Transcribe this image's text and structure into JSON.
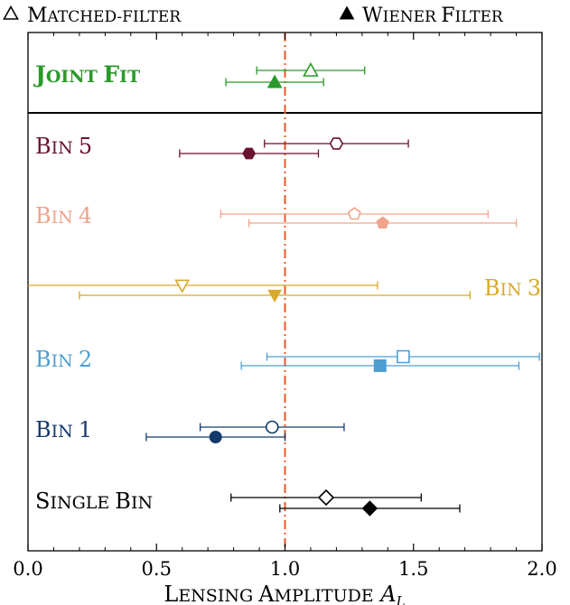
{
  "chart_data": {
    "type": "scatter",
    "xlabel": "Lensing amplitude",
    "xlabel_symbol": "A",
    "xlabel_subscript": "L",
    "xlim": [
      0.0,
      2.0
    ],
    "x_ticks": [
      "0.0",
      "0.5",
      "1.0",
      "1.5",
      "2.0"
    ],
    "reference_line": 1.0,
    "reference_color": "#e8592a",
    "grid": false,
    "legend_position": "top",
    "legend": [
      {
        "label": "Matched-filter",
        "marker": "open-triangle"
      },
      {
        "label": "Wiener filter",
        "marker": "filled-triangle"
      }
    ],
    "rows": [
      {
        "label": "Joint fit",
        "bold": true,
        "color": "#2a9a2a",
        "open": {
          "value": 1.1,
          "err_low": 0.89,
          "err_high": 1.31,
          "marker": "triangle-up"
        },
        "filled": {
          "value": 0.96,
          "err_low": 0.77,
          "err_high": 1.15,
          "marker": "triangle-up"
        }
      },
      {
        "label": "Bin 5",
        "bold": false,
        "color": "#6b1230",
        "open": {
          "value": 1.2,
          "err_low": 0.92,
          "err_high": 1.48,
          "marker": "hexagon"
        },
        "filled": {
          "value": 0.86,
          "err_low": 0.59,
          "err_high": 1.13,
          "marker": "hexagon"
        }
      },
      {
        "label": "Bin 4",
        "bold": false,
        "color": "#f0a38c",
        "open": {
          "value": 1.27,
          "err_low": 0.75,
          "err_high": 1.79,
          "marker": "pentagon"
        },
        "filled": {
          "value": 1.38,
          "err_low": 0.86,
          "err_high": 1.9,
          "marker": "pentagon"
        }
      },
      {
        "label": "Bin 3",
        "bold": false,
        "color": "#d8a92a",
        "label_side": "right",
        "open": {
          "value": 0.6,
          "err_low": 0.0,
          "err_high": 1.36,
          "marker": "triangle-down"
        },
        "filled": {
          "value": 0.96,
          "err_low": 0.2,
          "err_high": 1.72,
          "marker": "triangle-down"
        }
      },
      {
        "label": "Bin 2",
        "bold": false,
        "color": "#4d9fd2",
        "open": {
          "value": 1.46,
          "err_low": 0.93,
          "err_high": 1.99,
          "marker": "square"
        },
        "filled": {
          "value": 1.37,
          "err_low": 0.83,
          "err_high": 1.91,
          "marker": "square"
        }
      },
      {
        "label": "Bin 1",
        "bold": false,
        "color": "#143a6b",
        "open": {
          "value": 0.95,
          "err_low": 0.67,
          "err_high": 1.23,
          "marker": "circle"
        },
        "filled": {
          "value": 0.73,
          "err_low": 0.46,
          "err_high": 1.0,
          "marker": "circle"
        }
      },
      {
        "label": "Single bin",
        "bold": false,
        "color": "#000000",
        "open": {
          "value": 1.16,
          "err_low": 0.79,
          "err_high": 1.53,
          "marker": "diamond"
        },
        "filled": {
          "value": 1.33,
          "err_low": 0.98,
          "err_high": 1.68,
          "marker": "diamond"
        }
      }
    ]
  }
}
